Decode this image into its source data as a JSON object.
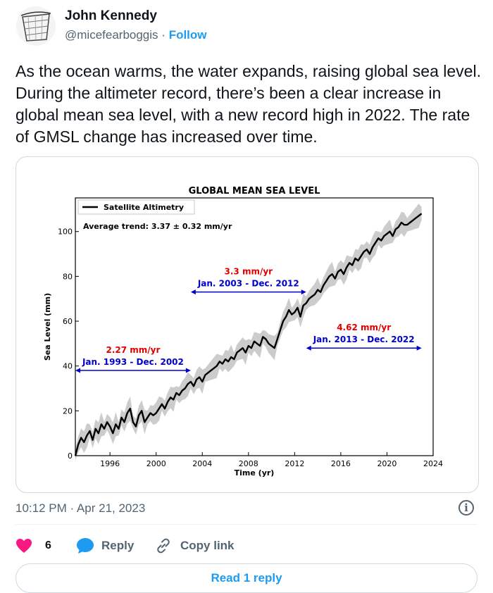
{
  "author": {
    "name": "John Kennedy",
    "handle": "@micefearboggis",
    "separator": "·",
    "follow_label": "Follow",
    "avatar_icon": "bucket-sketch-icon"
  },
  "tweet": {
    "text": "As the ocean warms, the water expands, raising global sea level. During the altimeter record, there’s been a clear increase in global mean sea level, with a new record high in 2022. The rate of GMSL change has increased over time.",
    "timestamp": "10:12 PM · Apr 21, 2023",
    "info_icon": "info-icon"
  },
  "actions": {
    "like_count": "6",
    "reply_label": "Reply",
    "copy_link_label": "Copy link",
    "read_replies_label": "Read 1 reply",
    "like_color": "#f91880",
    "reply_color": "#1d9bf0"
  },
  "chart_data": {
    "type": "line",
    "title": "GLOBAL MEAN SEA LEVEL",
    "xlabel": "Time (yr)",
    "ylabel": "Sea Level (mm)",
    "xlim": [
      1993,
      2024
    ],
    "ylim": [
      0,
      115
    ],
    "xticks": [
      1996,
      2000,
      2004,
      2008,
      2012,
      2016,
      2020,
      2024
    ],
    "yticks": [
      0,
      20,
      40,
      60,
      80,
      100
    ],
    "legend": {
      "label": "Satellite Altimetry",
      "position": "top-left"
    },
    "trend_label": "Average trend: 3.37 ± 0.32 mm/yr",
    "band_color": "#cccccc",
    "line_color": "#000000",
    "series": [
      {
        "name": "Satellite Altimetry",
        "x": [
          1993.0,
          1993.25,
          1993.5,
          1993.75,
          1994.0,
          1994.25,
          1994.5,
          1994.75,
          1995.0,
          1995.25,
          1995.5,
          1995.75,
          1996.0,
          1996.25,
          1996.5,
          1996.75,
          1997.0,
          1997.25,
          1997.5,
          1997.75,
          1998.0,
          1998.25,
          1998.5,
          1998.75,
          1999.0,
          1999.25,
          1999.5,
          1999.75,
          2000.0,
          2000.25,
          2000.5,
          2000.75,
          2001.0,
          2001.25,
          2001.5,
          2001.75,
          2002.0,
          2002.25,
          2002.5,
          2002.75,
          2003.0,
          2003.25,
          2003.5,
          2003.75,
          2004.0,
          2004.25,
          2004.5,
          2004.75,
          2005.0,
          2005.25,
          2005.5,
          2005.75,
          2006.0,
          2006.25,
          2006.5,
          2006.75,
          2007.0,
          2007.25,
          2007.5,
          2007.75,
          2008.0,
          2008.25,
          2008.5,
          2008.75,
          2009.0,
          2009.25,
          2009.5,
          2009.75,
          2010.0,
          2010.25,
          2010.5,
          2010.75,
          2011.0,
          2011.25,
          2011.5,
          2011.75,
          2012.0,
          2012.25,
          2012.5,
          2012.75,
          2013.0,
          2013.25,
          2013.5,
          2013.75,
          2014.0,
          2014.25,
          2014.5,
          2014.75,
          2015.0,
          2015.25,
          2015.5,
          2015.75,
          2016.0,
          2016.25,
          2016.5,
          2016.75,
          2017.0,
          2017.25,
          2017.5,
          2017.75,
          2018.0,
          2018.25,
          2018.5,
          2018.75,
          2019.0,
          2019.25,
          2019.5,
          2019.75,
          2020.0,
          2020.25,
          2020.5,
          2020.75,
          2021.0,
          2021.25,
          2021.5,
          2021.75,
          2022.0,
          2022.25,
          2022.5,
          2022.75,
          2023.0
        ],
        "y": [
          0,
          5,
          8,
          6,
          9,
          11,
          7,
          12,
          10,
          14,
          12,
          15,
          13,
          10,
          14,
          12,
          17,
          15,
          19,
          21,
          15,
          13,
          18,
          20,
          15,
          17,
          19,
          18,
          19,
          21,
          23,
          21,
          24,
          26,
          25,
          28,
          27,
          29,
          30,
          32,
          33,
          31,
          34,
          35,
          33,
          36,
          37,
          38,
          39,
          40,
          42,
          41,
          43,
          42,
          44,
          43,
          46,
          47,
          48,
          46,
          49,
          48,
          51,
          50,
          49,
          53,
          52,
          50,
          49,
          48,
          52,
          56,
          60,
          62,
          65,
          63,
          64,
          66,
          62,
          67,
          68,
          70,
          71,
          72,
          74,
          73,
          76,
          78,
          80,
          81,
          79,
          82,
          83,
          81,
          84,
          86,
          85,
          88,
          87,
          89,
          91,
          92,
          90,
          93,
          95,
          97,
          96,
          98,
          99,
          100,
          98,
          101,
          102,
          104,
          103,
          103,
          104,
          105,
          106,
          107,
          108
        ]
      }
    ],
    "annotations": [
      {
        "rate": "2.27 mm/yr",
        "period": "Jan. 1993 - Dec. 2002",
        "x_start": 1993,
        "x_end": 2003,
        "y": 38
      },
      {
        "rate": "3.3 mm/yr",
        "period": "Jan. 2003 - Dec. 2012",
        "x_start": 2003,
        "x_end": 2013,
        "y": 73
      },
      {
        "rate": "4.62 mm/yr",
        "period": "Jan. 2013 - Dec. 2022",
        "x_start": 2013,
        "x_end": 2023,
        "y": 48
      }
    ],
    "rate_color": "#e00000",
    "period_color": "#0000cc"
  }
}
